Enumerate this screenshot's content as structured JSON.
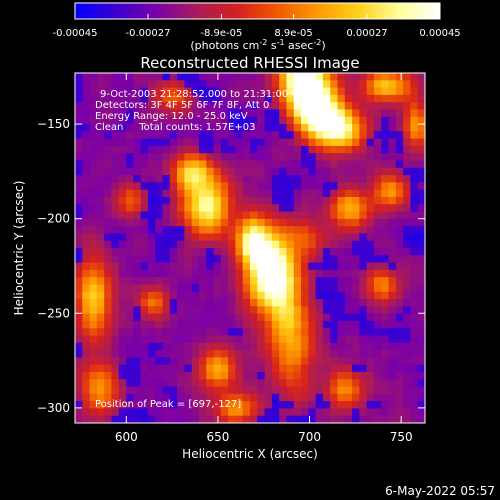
{
  "chart_data": {
    "type": "heatmap",
    "title": "Reconstructed RHESSI Image",
    "xlabel": "Heliocentric X (arcsec)",
    "ylabel": "Heliocentric Y (arcsec)",
    "xlim": [
      572,
      763
    ],
    "ylim": [
      -308,
      -123
    ],
    "x_ticks": [
      600,
      650,
      700,
      750
    ],
    "y_ticks": [
      -150,
      -200,
      -250,
      -300
    ],
    "colorbar": {
      "min": -0.00045,
      "max": 0.00045,
      "tick_values": [
        -0.00045,
        -0.00027,
        -8.9e-05,
        8.9e-05,
        0.00027,
        0.00045
      ],
      "tick_labels": [
        "-0.00045",
        "-0.00027",
        "-8.9e-05",
        "8.9e-05",
        "0.00027",
        "0.00045"
      ],
      "unit_parts": [
        "(photons cm",
        "-2",
        " s",
        "-1",
        " asec",
        "-2",
        ")"
      ],
      "colors": [
        "#0000ff",
        "#3b00d0",
        "#7a00a8",
        "#a81b5a",
        "#d52020",
        "#f05a00",
        "#ff9a00",
        "#ffd21a",
        "#ffff9a",
        "#ffffff"
      ]
    },
    "annotations": [
      "9-Oct-2003 21:28:52.000 to 21:31:00.000",
      "Detectors: 3F 4F 5F 6F 7F 8F, Att 0",
      "Energy Range: 12.0 - 25.0 keV",
      "Clean     Total counts: 1.57E+03"
    ],
    "peak_label": "Position of Peak = [697,-127]",
    "peak": [
      697,
      -127
    ],
    "sources": [
      {
        "x": 697,
        "y": -127,
        "amp": 1.0,
        "sx": 10,
        "sy": 12
      },
      {
        "x": 705,
        "y": -145,
        "amp": 0.75,
        "sx": 9,
        "sy": 10
      },
      {
        "x": 679,
        "y": -228,
        "amp": 1.0,
        "sx": 10,
        "sy": 16
      },
      {
        "x": 669,
        "y": -212,
        "amp": 0.6,
        "sx": 6,
        "sy": 9
      },
      {
        "x": 690,
        "y": -265,
        "amp": 0.55,
        "sx": 9,
        "sy": 20
      },
      {
        "x": 644,
        "y": -193,
        "amp": 0.8,
        "sx": 10,
        "sy": 11
      },
      {
        "x": 635,
        "y": -175,
        "amp": 0.55,
        "sx": 8,
        "sy": 7
      },
      {
        "x": 718,
        "y": -153,
        "amp": 0.65,
        "sx": 10,
        "sy": 8
      },
      {
        "x": 742,
        "y": -130,
        "amp": 0.6,
        "sx": 10,
        "sy": 6
      },
      {
        "x": 722,
        "y": -195,
        "amp": 0.55,
        "sx": 8,
        "sy": 8
      },
      {
        "x": 745,
        "y": -185,
        "amp": 0.5,
        "sx": 7,
        "sy": 7
      },
      {
        "x": 582,
        "y": -242,
        "amp": 0.65,
        "sx": 7,
        "sy": 16
      },
      {
        "x": 585,
        "y": -290,
        "amp": 0.5,
        "sx": 8,
        "sy": 10
      },
      {
        "x": 615,
        "y": -245,
        "amp": 0.45,
        "sx": 6,
        "sy": 6
      },
      {
        "x": 650,
        "y": -280,
        "amp": 0.55,
        "sx": 8,
        "sy": 8
      },
      {
        "x": 660,
        "y": -300,
        "amp": 0.45,
        "sx": 9,
        "sy": 6
      },
      {
        "x": 720,
        "y": -290,
        "amp": 0.45,
        "sx": 8,
        "sy": 8
      },
      {
        "x": 740,
        "y": -235,
        "amp": 0.45,
        "sx": 7,
        "sy": 7
      },
      {
        "x": 758,
        "y": -150,
        "amp": 0.5,
        "sx": 5,
        "sy": 10
      },
      {
        "x": 603,
        "y": -190,
        "amp": 0.4,
        "sx": 6,
        "sy": 6
      },
      {
        "x": 700,
        "y": -210,
        "amp": 0.35,
        "sx": 7,
        "sy": 7
      },
      {
        "x": 625,
        "y": -135,
        "amp": 0.4,
        "sx": 8,
        "sy": 6
      }
    ]
  },
  "footer_date": "6-May-2022 05:57"
}
